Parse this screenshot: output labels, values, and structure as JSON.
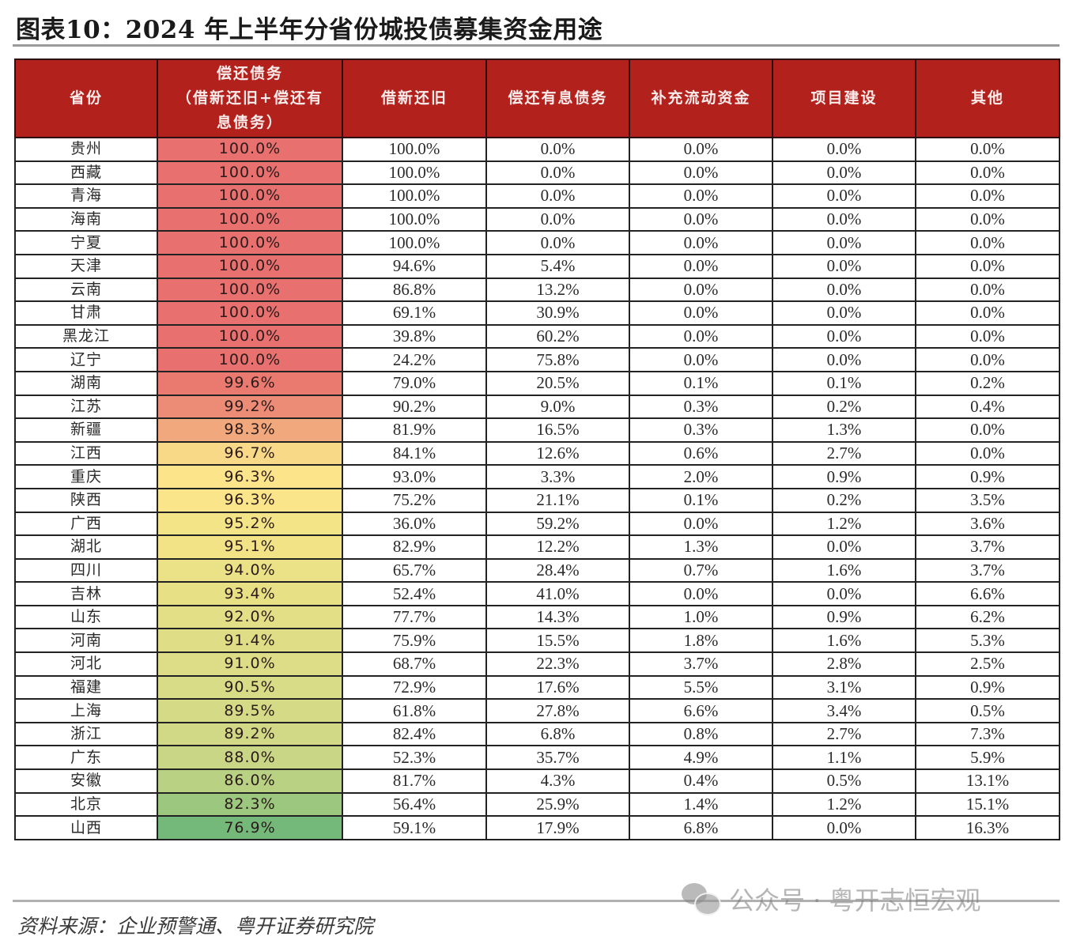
{
  "title": "图表10：2024 年上半年分省份城投债募集资金用途",
  "table": {
    "headers": [
      "省份",
      "偿还债务（借新还旧+偿还有息债务）",
      "借新还旧",
      "偿还有息债务",
      "补充流动资金",
      "项目建设",
      "其他"
    ],
    "header_lines": {
      "col1_line1": "偿还债务",
      "col1_line2": "（借新还旧+偿还有",
      "col1_line3": "息债务）"
    },
    "rows": [
      {
        "province": "贵州",
        "repay_total": "100.0%",
        "refinance": "100.0%",
        "repay_interest_debt": "0.0%",
        "working_capital": "0.0%",
        "project": "0.0%",
        "other": "0.0%",
        "heat_color": "#e8706f"
      },
      {
        "province": "西藏",
        "repay_total": "100.0%",
        "refinance": "100.0%",
        "repay_interest_debt": "0.0%",
        "working_capital": "0.0%",
        "project": "0.0%",
        "other": "0.0%",
        "heat_color": "#e8706f"
      },
      {
        "province": "青海",
        "repay_total": "100.0%",
        "refinance": "100.0%",
        "repay_interest_debt": "0.0%",
        "working_capital": "0.0%",
        "project": "0.0%",
        "other": "0.0%",
        "heat_color": "#e8706f"
      },
      {
        "province": "海南",
        "repay_total": "100.0%",
        "refinance": "100.0%",
        "repay_interest_debt": "0.0%",
        "working_capital": "0.0%",
        "project": "0.0%",
        "other": "0.0%",
        "heat_color": "#e8706f"
      },
      {
        "province": "宁夏",
        "repay_total": "100.0%",
        "refinance": "100.0%",
        "repay_interest_debt": "0.0%",
        "working_capital": "0.0%",
        "project": "0.0%",
        "other": "0.0%",
        "heat_color": "#e8706f"
      },
      {
        "province": "天津",
        "repay_total": "100.0%",
        "refinance": "94.6%",
        "repay_interest_debt": "5.4%",
        "working_capital": "0.0%",
        "project": "0.0%",
        "other": "0.0%",
        "heat_color": "#e8706f"
      },
      {
        "province": "云南",
        "repay_total": "100.0%",
        "refinance": "86.8%",
        "repay_interest_debt": "13.2%",
        "working_capital": "0.0%",
        "project": "0.0%",
        "other": "0.0%",
        "heat_color": "#e8706f"
      },
      {
        "province": "甘肃",
        "repay_total": "100.0%",
        "refinance": "69.1%",
        "repay_interest_debt": "30.9%",
        "working_capital": "0.0%",
        "project": "0.0%",
        "other": "0.0%",
        "heat_color": "#e8706f"
      },
      {
        "province": "黑龙江",
        "repay_total": "100.0%",
        "refinance": "39.8%",
        "repay_interest_debt": "60.2%",
        "working_capital": "0.0%",
        "project": "0.0%",
        "other": "0.0%",
        "heat_color": "#e8706f"
      },
      {
        "province": "辽宁",
        "repay_total": "100.0%",
        "refinance": "24.2%",
        "repay_interest_debt": "75.8%",
        "working_capital": "0.0%",
        "project": "0.0%",
        "other": "0.0%",
        "heat_color": "#e8706f"
      },
      {
        "province": "湖南",
        "repay_total": "99.6%",
        "refinance": "79.0%",
        "repay_interest_debt": "20.5%",
        "working_capital": "0.1%",
        "project": "0.1%",
        "other": "0.2%",
        "heat_color": "#ea7a70"
      },
      {
        "province": "江苏",
        "repay_total": "99.2%",
        "refinance": "90.2%",
        "repay_interest_debt": "9.0%",
        "working_capital": "0.3%",
        "project": "0.2%",
        "other": "0.4%",
        "heat_color": "#ec8c76"
      },
      {
        "province": "新疆",
        "repay_total": "98.3%",
        "refinance": "81.9%",
        "repay_interest_debt": "16.5%",
        "working_capital": "0.3%",
        "project": "1.3%",
        "other": "0.0%",
        "heat_color": "#f1a87d"
      },
      {
        "province": "江西",
        "repay_total": "96.7%",
        "refinance": "84.1%",
        "repay_interest_debt": "12.6%",
        "working_capital": "0.6%",
        "project": "2.7%",
        "other": "0.0%",
        "heat_color": "#f8d988"
      },
      {
        "province": "重庆",
        "repay_total": "96.3%",
        "refinance": "93.0%",
        "repay_interest_debt": "3.3%",
        "working_capital": "2.0%",
        "project": "0.9%",
        "other": "0.9%",
        "heat_color": "#fce48a"
      },
      {
        "province": "陕西",
        "repay_total": "96.3%",
        "refinance": "75.2%",
        "repay_interest_debt": "21.1%",
        "working_capital": "0.1%",
        "project": "0.2%",
        "other": "3.5%",
        "heat_color": "#fbe58a"
      },
      {
        "province": "广西",
        "repay_total": "95.2%",
        "refinance": "36.0%",
        "repay_interest_debt": "59.2%",
        "working_capital": "0.0%",
        "project": "1.2%",
        "other": "3.6%",
        "heat_color": "#f4e488"
      },
      {
        "province": "湖北",
        "repay_total": "95.1%",
        "refinance": "82.9%",
        "repay_interest_debt": "12.2%",
        "working_capital": "1.3%",
        "project": "0.0%",
        "other": "3.7%",
        "heat_color": "#f2e387"
      },
      {
        "province": "四川",
        "repay_total": "94.0%",
        "refinance": "65.7%",
        "repay_interest_debt": "28.4%",
        "working_capital": "0.7%",
        "project": "1.6%",
        "other": "3.7%",
        "heat_color": "#ebe186"
      },
      {
        "province": "吉林",
        "repay_total": "93.4%",
        "refinance": "52.4%",
        "repay_interest_debt": "41.0%",
        "working_capital": "0.0%",
        "project": "0.0%",
        "other": "6.6%",
        "heat_color": "#e7e085"
      },
      {
        "province": "山东",
        "repay_total": "92.0%",
        "refinance": "77.7%",
        "repay_interest_debt": "14.3%",
        "working_capital": "1.0%",
        "project": "0.9%",
        "other": "6.2%",
        "heat_color": "#e2df86"
      },
      {
        "province": "河南",
        "repay_total": "91.4%",
        "refinance": "75.9%",
        "repay_interest_debt": "15.5%",
        "working_capital": "1.8%",
        "project": "1.6%",
        "other": "5.3%",
        "heat_color": "#dfde86"
      },
      {
        "province": "河北",
        "repay_total": "91.0%",
        "refinance": "68.7%",
        "repay_interest_debt": "22.3%",
        "working_capital": "3.7%",
        "project": "2.8%",
        "other": "2.5%",
        "heat_color": "#dcdd86"
      },
      {
        "province": "福建",
        "repay_total": "90.5%",
        "refinance": "72.9%",
        "repay_interest_debt": "17.6%",
        "working_capital": "5.5%",
        "project": "3.1%",
        "other": "0.9%",
        "heat_color": "#d9dc86"
      },
      {
        "province": "上海",
        "repay_total": "89.5%",
        "refinance": "61.8%",
        "repay_interest_debt": "27.8%",
        "working_capital": "6.6%",
        "project": "3.4%",
        "other": "0.5%",
        "heat_color": "#d4da86"
      },
      {
        "province": "浙江",
        "repay_total": "89.2%",
        "refinance": "82.4%",
        "repay_interest_debt": "6.8%",
        "working_capital": "0.8%",
        "project": "2.7%",
        "other": "7.3%",
        "heat_color": "#d2d986"
      },
      {
        "province": "广东",
        "repay_total": "88.0%",
        "refinance": "52.3%",
        "repay_interest_debt": "35.7%",
        "working_capital": "4.9%",
        "project": "1.1%",
        "other": "5.9%",
        "heat_color": "#c8d685"
      },
      {
        "province": "安徽",
        "repay_total": "86.0%",
        "refinance": "81.7%",
        "repay_interest_debt": "4.3%",
        "working_capital": "0.4%",
        "project": "0.5%",
        "other": "13.1%",
        "heat_color": "#b8d183"
      },
      {
        "province": "北京",
        "repay_total": "82.3%",
        "refinance": "56.4%",
        "repay_interest_debt": "25.9%",
        "working_capital": "1.4%",
        "project": "1.2%",
        "other": "15.1%",
        "heat_color": "#9cc77f"
      },
      {
        "province": "山西",
        "repay_total": "76.9%",
        "refinance": "59.1%",
        "repay_interest_debt": "17.9%",
        "working_capital": "6.8%",
        "project": "0.0%",
        "other": "16.3%",
        "heat_color": "#74b97a"
      }
    ]
  },
  "colors": {
    "header_bg": "#b2211c",
    "header_text": "#fbecec",
    "heat_max": "#e8706f",
    "heat_mid": "#fce48a",
    "heat_min": "#74b97a"
  },
  "source": "资料来源：企业预警通、粤开证券研究院",
  "watermark": {
    "icon": "wechat-icon",
    "text": "公众号 · 粤开志恒宏观"
  }
}
